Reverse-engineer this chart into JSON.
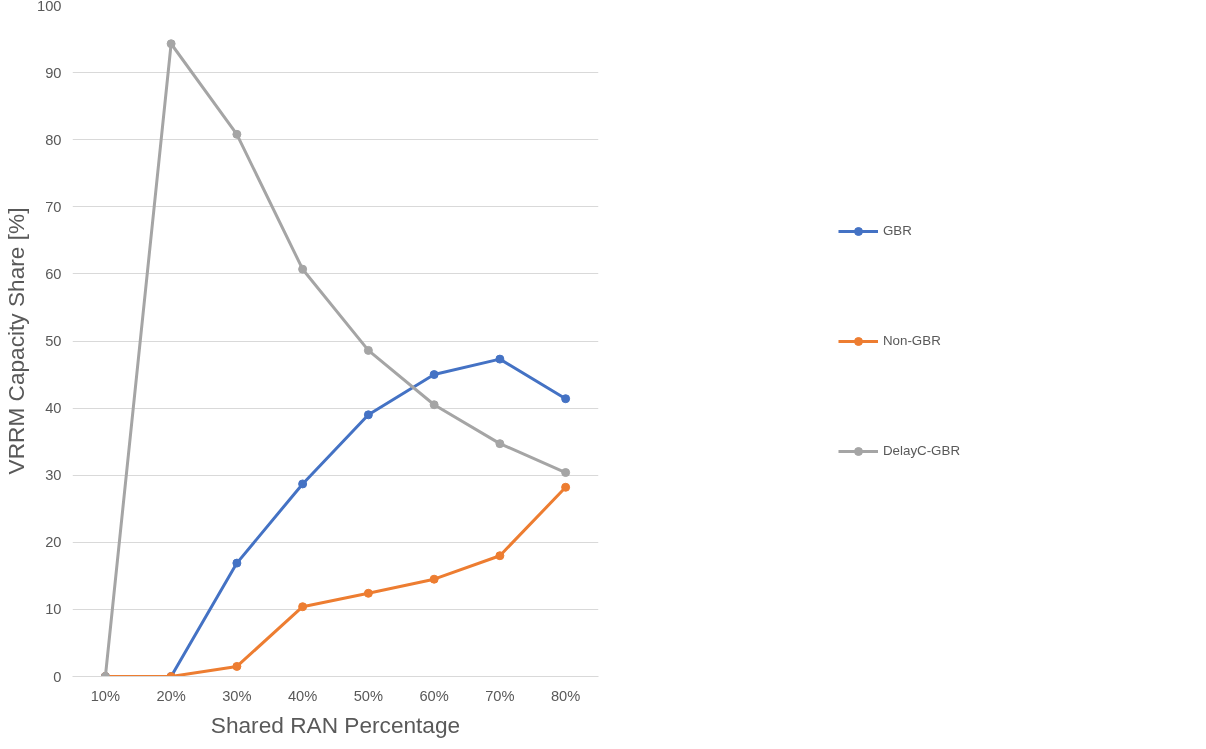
{
  "chart_data": {
    "type": "line",
    "xlabel": "Shared RAN Percentage",
    "ylabel": "VRRM Capacity Share [%]",
    "categories": [
      "10%",
      "20%",
      "30%",
      "40%",
      "50%",
      "60%",
      "70%",
      "80%"
    ],
    "series": [
      {
        "name": "GBR",
        "color": "#4472c4",
        "values": [
          0,
          0,
          16.9,
          28.7,
          39.0,
          45.0,
          47.3,
          41.4
        ]
      },
      {
        "name": "Non-GBR",
        "color": "#ed7d31",
        "values": [
          0,
          0,
          1.5,
          10.4,
          12.4,
          14.5,
          18.0,
          28.2
        ]
      },
      {
        "name": "DelayC-GBR",
        "color": "#a5a5a5",
        "values": [
          0,
          94.3,
          80.8,
          60.7,
          48.6,
          40.5,
          34.7,
          30.4
        ]
      }
    ],
    "ylim": [
      0,
      100
    ],
    "yticks": [
      0,
      10,
      20,
      30,
      40,
      50,
      60,
      70,
      80,
      90,
      100
    ],
    "grid": "y",
    "legend": "right",
    "marker": "circle",
    "line_style": "solid"
  }
}
